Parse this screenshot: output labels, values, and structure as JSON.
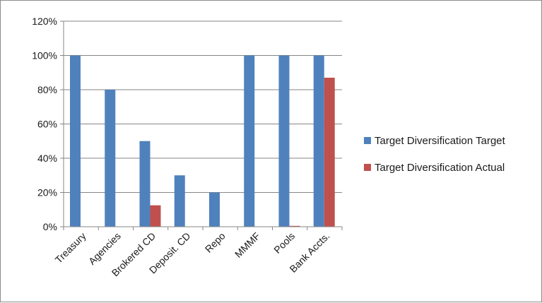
{
  "chart_data": {
    "type": "bar",
    "categories": [
      "Treasury",
      "Agencies",
      "Brokered CD",
      "Deposit. CD",
      "Repo",
      "MMMF",
      "Pools",
      "Bank Accts."
    ],
    "series": [
      {
        "name": "Target Diversification Target",
        "color": "#4f81bd",
        "values": [
          100,
          80,
          50,
          30,
          20,
          100,
          100,
          100
        ]
      },
      {
        "name": "Target Diversification Actual",
        "color": "#c0504d",
        "values": [
          0,
          0,
          12.5,
          0,
          0,
          0,
          0.5,
          87
        ]
      }
    ],
    "ylim": [
      0,
      120
    ],
    "yticks": [
      "0%",
      "20%",
      "40%",
      "60%",
      "80%",
      "100%",
      "120%"
    ],
    "grid": true,
    "legend": "right"
  }
}
